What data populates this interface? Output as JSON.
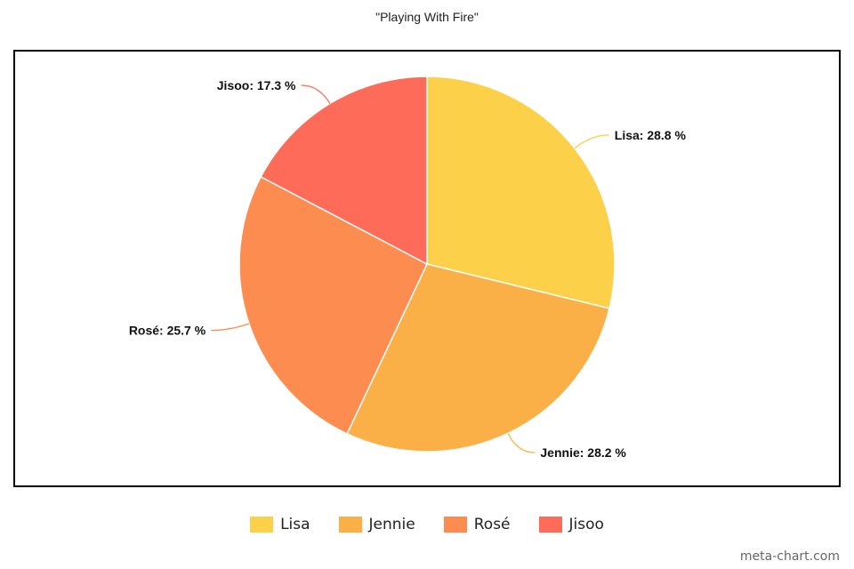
{
  "chart_data": {
    "type": "pie",
    "title": "\"Playing With Fire\"",
    "slices": [
      {
        "label": "Lisa",
        "value": 28.8,
        "display": "Lisa: 28.8 %",
        "color": "#FDD049"
      },
      {
        "label": "Jennie",
        "value": 28.2,
        "display": "Jennie: 28.2 %",
        "color": "#FBAF47"
      },
      {
        "label": "Rosé",
        "value": 25.7,
        "display": "Rosé: 25.7 %",
        "color": "#FC8C4F"
      },
      {
        "label": "Jisoo",
        "value": 17.3,
        "display": "Jisoo: 17.3 %",
        "color": "#FE6B58"
      }
    ],
    "legend_position": "bottom"
  },
  "watermark": "meta-chart.com"
}
